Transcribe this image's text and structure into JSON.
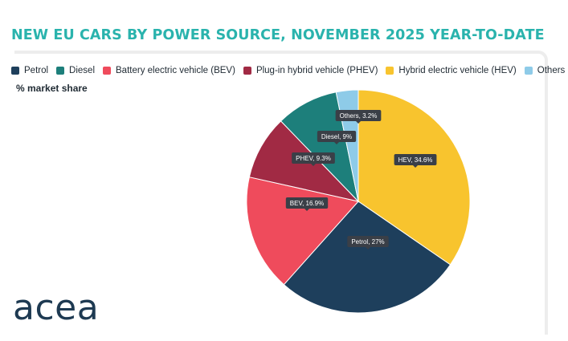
{
  "title": "NEW EU CARS BY POWER SOURCE, NOVEMBER 2025 YEAR-TO-DATE",
  "subtitle": "% market share",
  "logo_text": "acea",
  "legend": [
    {
      "label": "Petrol",
      "color": "#1e3f5c"
    },
    {
      "label": "Diesel",
      "color": "#1d7f7b"
    },
    {
      "label": "Battery electric vehicle (BEV)",
      "color": "#ef4b5c"
    },
    {
      "label": "Plug-in hybrid vehicle (PHEV)",
      "color": "#a12a44"
    },
    {
      "label": "Hybrid electric vehicle (HEV)",
      "color": "#f8c42e"
    },
    {
      "label": "Others",
      "color": "#8ecbe8"
    }
  ],
  "chart_data": {
    "type": "pie",
    "title": "NEW EU CARS BY POWER SOURCE, NOVEMBER 2025 YEAR-TO-DATE",
    "subtitle": "% market share",
    "legend_position": "top-left",
    "slices": [
      {
        "name": "HEV",
        "value": 34.6,
        "label": "HEV, 34.6%",
        "color": "#f8c42e"
      },
      {
        "name": "Petrol",
        "value": 27,
        "label": "Petrol, 27%",
        "color": "#1e3f5c"
      },
      {
        "name": "BEV",
        "value": 16.9,
        "label": "BEV, 16.9%",
        "color": "#ef4b5c"
      },
      {
        "name": "PHEV",
        "value": 9.3,
        "label": "PHEV, 9.3%",
        "color": "#a12a44"
      },
      {
        "name": "Diesel",
        "value": 9,
        "label": "Diesel, 9%",
        "color": "#1d7f7b"
      },
      {
        "name": "Others",
        "value": 3.2,
        "label": "Others, 3.2%",
        "color": "#8ecbe8"
      }
    ]
  }
}
